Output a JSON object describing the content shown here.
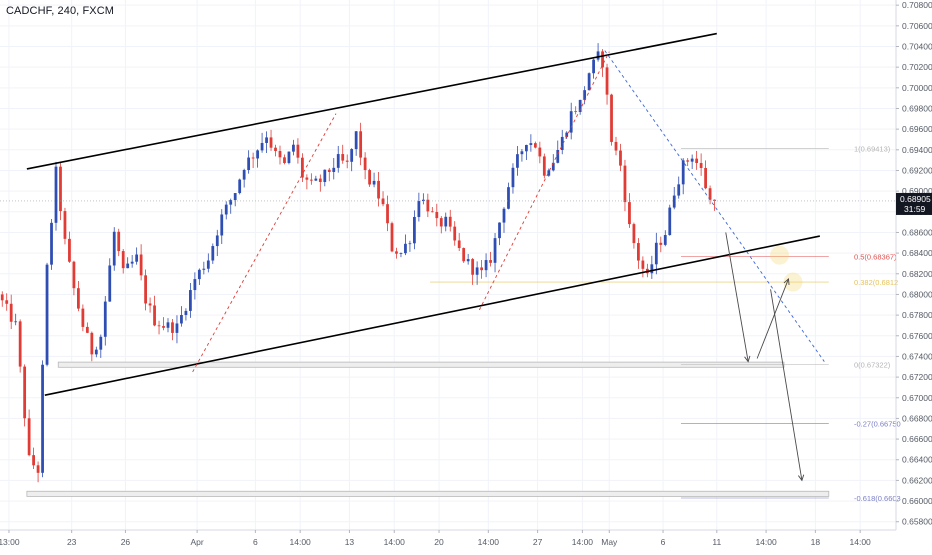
{
  "header": {
    "symbol_label": "CADCHF, 240, FXCM"
  },
  "colors": {
    "up": "#2f4eb3",
    "down": "#e03b35",
    "grid": "#f0f3fa",
    "axis_text": "#555b66",
    "price_tag": "#131722",
    "channel": "#000000",
    "dashed_red": "#e03b35",
    "dashed_blue": "#3b66d6",
    "fib_1": "#b5b5b5",
    "fib_05": "#e05353",
    "fib_038": "#e6c35a",
    "fib_0": "#b5b5b5",
    "fib_027": "#7b7fc4",
    "fib_0618": "#7b7fc4",
    "zone": "#d9d9d9",
    "highlight": "#f4d35e"
  },
  "chart_data": {
    "type": "candlestick",
    "title": "",
    "ylim": [
      0.6572,
      0.7085
    ],
    "bar_range": [
      0,
      200
    ],
    "y_tick_labels": [
      "0.70800",
      "0.70600",
      "0.70400",
      "0.70200",
      "0.70000",
      "0.69800",
      "0.69600",
      "0.69400",
      "0.69200",
      "0.69000",
      "0.68800",
      "0.68600",
      "0.68400",
      "0.68200",
      "0.68000",
      "0.67800",
      "0.67600",
      "0.67400",
      "0.67200",
      "0.67000",
      "0.66800",
      "0.66600",
      "0.66400",
      "0.66200",
      "0.66000",
      "0.65800"
    ],
    "x_ticks": [
      {
        "bar": 2,
        "label": "13:00"
      },
      {
        "bar": 16,
        "label": "23"
      },
      {
        "bar": 28,
        "label": "26"
      },
      {
        "bar": 44,
        "label": "Apr"
      },
      {
        "bar": 57,
        "label": "6"
      },
      {
        "bar": 67,
        "label": "14:00"
      },
      {
        "bar": 78,
        "label": "13"
      },
      {
        "bar": 88,
        "label": "14:00"
      },
      {
        "bar": 98,
        "label": "20"
      },
      {
        "bar": 109,
        "label": "14:00"
      },
      {
        "bar": 120,
        "label": "27"
      },
      {
        "bar": 130,
        "label": "14:00"
      },
      {
        "bar": 136,
        "label": "May"
      },
      {
        "bar": 148,
        "label": "6"
      },
      {
        "bar": 160,
        "label": "11"
      },
      {
        "bar": 171,
        "label": "14:00"
      },
      {
        "bar": 182,
        "label": "18"
      },
      {
        "bar": 192,
        "label": "14:00"
      }
    ],
    "last_price": {
      "value": 0.68905,
      "label": "0.68905",
      "countdown": "31:59"
    },
    "anchors": [
      [
        0,
        0.68
      ],
      [
        4,
        0.677
      ],
      [
        7,
        0.664
      ],
      [
        9,
        0.663
      ],
      [
        11,
        0.6825
      ],
      [
        13,
        0.6918
      ],
      [
        15,
        0.685
      ],
      [
        17,
        0.6805
      ],
      [
        19,
        0.677
      ],
      [
        21,
        0.6745
      ],
      [
        23,
        0.676
      ],
      [
        26,
        0.686
      ],
      [
        28,
        0.682
      ],
      [
        31,
        0.6835
      ],
      [
        33,
        0.6795
      ],
      [
        35,
        0.6775
      ],
      [
        37,
        0.677
      ],
      [
        40,
        0.6768
      ],
      [
        42,
        0.679
      ],
      [
        44,
        0.6815
      ],
      [
        47,
        0.6835
      ],
      [
        50,
        0.6875
      ],
      [
        53,
        0.69
      ],
      [
        55,
        0.6925
      ],
      [
        57,
        0.6935
      ],
      [
        60,
        0.6955
      ],
      [
        62,
        0.6935
      ],
      [
        64,
        0.6925
      ],
      [
        66,
        0.6945
      ],
      [
        68,
        0.6915
      ],
      [
        70,
        0.6905
      ],
      [
        72,
        0.691
      ],
      [
        74,
        0.692
      ],
      [
        76,
        0.693
      ],
      [
        78,
        0.6925
      ],
      [
        80,
        0.6955
      ],
      [
        82,
        0.6915
      ],
      [
        84,
        0.6905
      ],
      [
        86,
        0.6885
      ],
      [
        88,
        0.6845
      ],
      [
        90,
        0.684
      ],
      [
        92,
        0.6855
      ],
      [
        94,
        0.6895
      ],
      [
        96,
        0.6885
      ],
      [
        98,
        0.6868
      ],
      [
        100,
        0.687
      ],
      [
        102,
        0.685
      ],
      [
        104,
        0.6835
      ],
      [
        106,
        0.6825
      ],
      [
        108,
        0.682
      ],
      [
        110,
        0.6835
      ],
      [
        112,
        0.687
      ],
      [
        114,
        0.6905
      ],
      [
        116,
        0.693
      ],
      [
        118,
        0.695
      ],
      [
        120,
        0.6945
      ],
      [
        122,
        0.692
      ],
      [
        124,
        0.693
      ],
      [
        126,
        0.695
      ],
      [
        128,
        0.6975
      ],
      [
        130,
        0.6985
      ],
      [
        132,
        0.7015
      ],
      [
        134,
        0.703
      ],
      [
        135,
        0.7025
      ],
      [
        136,
        0.699
      ],
      [
        137,
        0.695
      ],
      [
        139,
        0.6925
      ],
      [
        141,
        0.6865
      ],
      [
        143,
        0.6835
      ],
      [
        145,
        0.6815
      ],
      [
        147,
        0.6845
      ],
      [
        149,
        0.686
      ],
      [
        151,
        0.69
      ],
      [
        153,
        0.6925
      ],
      [
        155,
        0.6935
      ],
      [
        157,
        0.692
      ],
      [
        158,
        0.6905
      ],
      [
        159,
        0.68905
      ]
    ],
    "channel_upper": [
      [
        6,
        0.69215
      ],
      [
        160,
        0.70525
      ]
    ],
    "channel_lower": [
      [
        10,
        0.67025
      ],
      [
        183,
        0.68565
      ]
    ],
    "dashed_red_lines": [
      [
        [
          43,
          0.6725
        ],
        [
          75,
          0.6975
        ]
      ],
      [
        [
          107,
          0.6785
        ],
        [
          136,
          0.7035
        ]
      ]
    ],
    "dashed_blue_line": [
      [
        135,
        0.7036
      ],
      [
        184,
        0.6735
      ]
    ],
    "fib_levels": [
      {
        "ratio_label": "1(0.69413)",
        "value": 0.69413,
        "x1": 152,
        "x2": 185,
        "color_key": "fib_1"
      },
      {
        "ratio_label": "0.5(0.68367)",
        "value": 0.68367,
        "x1": 152,
        "x2": 185,
        "color_key": "fib_05"
      },
      {
        "ratio_label": "0.382(0.6812",
        "value": 0.6812,
        "x1": 96,
        "x2": 185,
        "color_key": "fib_038"
      },
      {
        "ratio_label": "0(0.67322)",
        "value": 0.67322,
        "x1": 152,
        "x2": 185,
        "color_key": "fib_0"
      },
      {
        "ratio_label": "-0.27(0.66750",
        "value": 0.6675,
        "x1": 152,
        "x2": 185,
        "color_key": "fib_027"
      },
      {
        "ratio_label": "-0.618(0.6603",
        "value": 0.6603,
        "x1": 152,
        "x2": 185,
        "color_key": "fib_0618"
      }
    ],
    "zones": [
      {
        "x1": 13,
        "x2": 175,
        "y1": 0.67295,
        "y2": 0.67345
      },
      {
        "x1": 6,
        "x2": 185,
        "y1": 0.66045,
        "y2": 0.66095
      }
    ],
    "projection_arrows": [
      [
        [
          162,
          0.686
        ],
        [
          167,
          0.6735
        ]
      ],
      [
        [
          169,
          0.6738
        ],
        [
          176,
          0.6815
        ]
      ],
      [
        [
          172,
          0.6805
        ],
        [
          179,
          0.662
        ]
      ]
    ],
    "highlight_circles": [
      [
        174,
        0.6838
      ],
      [
        177,
        0.6812
      ]
    ]
  }
}
